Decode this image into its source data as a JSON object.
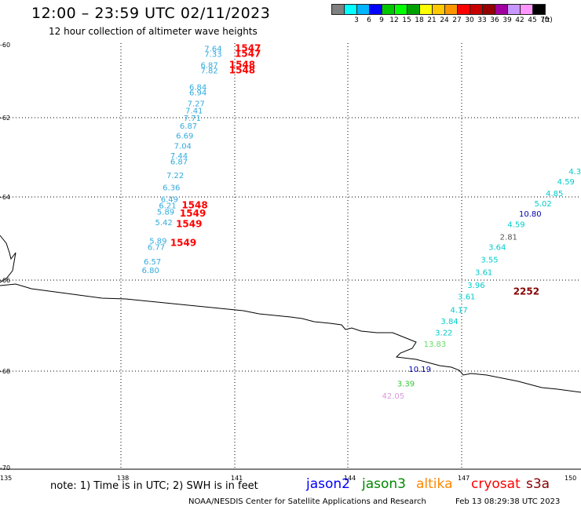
{
  "header": {
    "title": "12:00 – 23:59 UTC 02/11/2023",
    "subtitle": "12 hour collection of altimeter wave heights"
  },
  "legend": {
    "units": "(ft)",
    "swatches": [
      {
        "color": "#808080",
        "label": ""
      },
      {
        "color": "#00ffff",
        "label": "3"
      },
      {
        "color": "#00b4ff",
        "label": "6"
      },
      {
        "color": "#0000ff",
        "label": "9"
      },
      {
        "color": "#00c800",
        "label": "12"
      },
      {
        "color": "#00ff00",
        "label": "15"
      },
      {
        "color": "#00a000",
        "label": "18"
      },
      {
        "color": "#ffff00",
        "label": "21"
      },
      {
        "color": "#ffc800",
        "label": "24"
      },
      {
        "color": "#ff9600",
        "label": "27"
      },
      {
        "color": "#ff0000",
        "label": "30"
      },
      {
        "color": "#c80000",
        "label": "33"
      },
      {
        "color": "#960000",
        "label": "36"
      },
      {
        "color": "#a000a0",
        "label": "39"
      },
      {
        "color": "#c896ff",
        "label": "42"
      },
      {
        "color": "#ff96ff",
        "label": "45"
      },
      {
        "color": "#000000",
        "label": "70"
      }
    ]
  },
  "map": {
    "lon_ticks": [
      "135",
      "138",
      "141",
      "144",
      "147",
      "150"
    ],
    "lat_ticks": [
      "-60",
      "-62",
      "-64",
      "-66",
      "-68",
      "-70"
    ],
    "lon_range": [
      135,
      150
    ],
    "lat_range": [
      -60,
      -70
    ]
  },
  "observations": [
    {
      "v": "7.64",
      "lon": 140.2,
      "lat": -60.1,
      "c": "#33aadd"
    },
    {
      "v": "7.33",
      "lon": 140.2,
      "lat": -60.25,
      "c": "#33aadd"
    },
    {
      "v": "6.87",
      "lon": 140.1,
      "lat": -60.55,
      "c": "#33aadd"
    },
    {
      "v": "7.82",
      "lon": 140.1,
      "lat": -60.7,
      "c": "#33aadd"
    },
    {
      "v": "6.84",
      "lon": 139.8,
      "lat": -61.15,
      "c": "#33aadd"
    },
    {
      "v": "6.94",
      "lon": 139.8,
      "lat": -61.3,
      "c": "#33aadd"
    },
    {
      "v": "7.27",
      "lon": 139.75,
      "lat": -61.6,
      "c": "#33aadd"
    },
    {
      "v": "7.41",
      "lon": 139.7,
      "lat": -61.8,
      "c": "#33aadd"
    },
    {
      "v": "7.71",
      "lon": 139.65,
      "lat": -62.0,
      "c": "#33aadd"
    },
    {
      "v": "6.87",
      "lon": 139.55,
      "lat": -62.2,
      "c": "#33aadd"
    },
    {
      "v": "6.69",
      "lon": 139.45,
      "lat": -62.45,
      "c": "#33aadd"
    },
    {
      "v": "7.04",
      "lon": 139.4,
      "lat": -62.7,
      "c": "#33aadd"
    },
    {
      "v": "7.44",
      "lon": 139.3,
      "lat": -62.95,
      "c": "#33aadd"
    },
    {
      "v": "6.87",
      "lon": 139.3,
      "lat": -63.1,
      "c": "#33aadd"
    },
    {
      "v": "7.22",
      "lon": 139.2,
      "lat": -63.45,
      "c": "#33aadd"
    },
    {
      "v": "6.36",
      "lon": 139.1,
      "lat": -63.75,
      "c": "#33aadd"
    },
    {
      "v": "6.49",
      "lon": 139.05,
      "lat": -64.05,
      "c": "#33aadd"
    },
    {
      "v": "6.21",
      "lon": 139.0,
      "lat": -64.2,
      "c": "#33aadd"
    },
    {
      "v": "5.89",
      "lon": 138.95,
      "lat": -64.35,
      "c": "#33aadd"
    },
    {
      "v": "5.42",
      "lon": 138.9,
      "lat": -64.6,
      "c": "#33aadd"
    },
    {
      "v": "5.89",
      "lon": 138.75,
      "lat": -65.05,
      "c": "#33aadd"
    },
    {
      "v": "6.77",
      "lon": 138.7,
      "lat": -65.2,
      "c": "#33aadd"
    },
    {
      "v": "6.57",
      "lon": 138.6,
      "lat": -65.55,
      "c": "#33aadd"
    },
    {
      "v": "6.80",
      "lon": 138.55,
      "lat": -65.75,
      "c": "#33aadd"
    },
    {
      "v": "4.3",
      "lon": 149.8,
      "lat": -63.35,
      "c": "#00cccc"
    },
    {
      "v": "4.59",
      "lon": 149.5,
      "lat": -63.6,
      "c": "#00cccc"
    },
    {
      "v": "4.85",
      "lon": 149.2,
      "lat": -63.9,
      "c": "#00cccc"
    },
    {
      "v": "5.02",
      "lon": 148.9,
      "lat": -64.15,
      "c": "#00cccc"
    },
    {
      "v": "10.80",
      "lon": 148.5,
      "lat": -64.4,
      "c": "#0000aa"
    },
    {
      "v": "4.59",
      "lon": 148.2,
      "lat": -64.65,
      "c": "#00cccc"
    },
    {
      "v": "2.81",
      "lon": 148.0,
      "lat": -64.95,
      "c": "#555555"
    },
    {
      "v": "3.64",
      "lon": 147.7,
      "lat": -65.2,
      "c": "#00cccc"
    },
    {
      "v": "3.55",
      "lon": 147.5,
      "lat": -65.5,
      "c": "#00cccc"
    },
    {
      "v": "3.61",
      "lon": 147.35,
      "lat": -65.8,
      "c": "#00cccc"
    },
    {
      "v": "3.96",
      "lon": 147.15,
      "lat": -66.1,
      "c": "#00cccc"
    },
    {
      "v": "3.61",
      "lon": 146.9,
      "lat": -66.35,
      "c": "#00cccc"
    },
    {
      "v": "4.17",
      "lon": 146.7,
      "lat": -66.65,
      "c": "#00cccc"
    },
    {
      "v": "3.84",
      "lon": 146.45,
      "lat": -66.9,
      "c": "#00cccc"
    },
    {
      "v": "3.22",
      "lon": 146.3,
      "lat": -67.15,
      "c": "#00cccc"
    },
    {
      "v": "13.83",
      "lon": 146.0,
      "lat": -67.4,
      "c": "#66dd66"
    },
    {
      "v": "10.19",
      "lon": 145.6,
      "lat": -67.95,
      "c": "#0000aa"
    },
    {
      "v": "3.39",
      "lon": 145.3,
      "lat": -68.25,
      "c": "#33cc33"
    },
    {
      "v": "42.05",
      "lon": 144.9,
      "lat": -68.5,
      "c": "#dd99dd"
    }
  ],
  "times": [
    {
      "v": "1547",
      "lon": 141.0,
      "lat": -60.1,
      "c": "#ff0000"
    },
    {
      "v": "1547",
      "lon": 141.0,
      "lat": -60.25,
      "c": "#ff0000"
    },
    {
      "v": "1548",
      "lon": 140.85,
      "lat": -60.55,
      "c": "#ff0000"
    },
    {
      "v": "1548",
      "lon": 140.85,
      "lat": -60.7,
      "c": "#ff0000"
    },
    {
      "v": "1548",
      "lon": 139.6,
      "lat": -64.2,
      "c": "#ff0000"
    },
    {
      "v": "1549",
      "lon": 139.55,
      "lat": -64.4,
      "c": "#ff0000"
    },
    {
      "v": "1549",
      "lon": 139.45,
      "lat": -64.65,
      "c": "#ff0000"
    },
    {
      "v": "1549",
      "lon": 139.3,
      "lat": -65.1,
      "c": "#ff0000"
    },
    {
      "v": "2252",
      "lon": 148.35,
      "lat": -66.25,
      "c": "#880000"
    }
  ],
  "footer": {
    "note": "note:  1) Time is in UTC;  2) SWH is in feet",
    "satellites": [
      {
        "name": "jason2",
        "color": "#0000ff"
      },
      {
        "name": "jason3",
        "color": "#008800"
      },
      {
        "name": "altika",
        "color": "#ff8800"
      },
      {
        "name": "cryosat",
        "color": "#ff0000"
      },
      {
        "name": "s3a",
        "color": "#880000"
      }
    ],
    "credit": "NOAA/NESDIS Center for Satellite Applications and Research",
    "timestamp": "Feb 13 08:29:38 UTC 2023"
  }
}
